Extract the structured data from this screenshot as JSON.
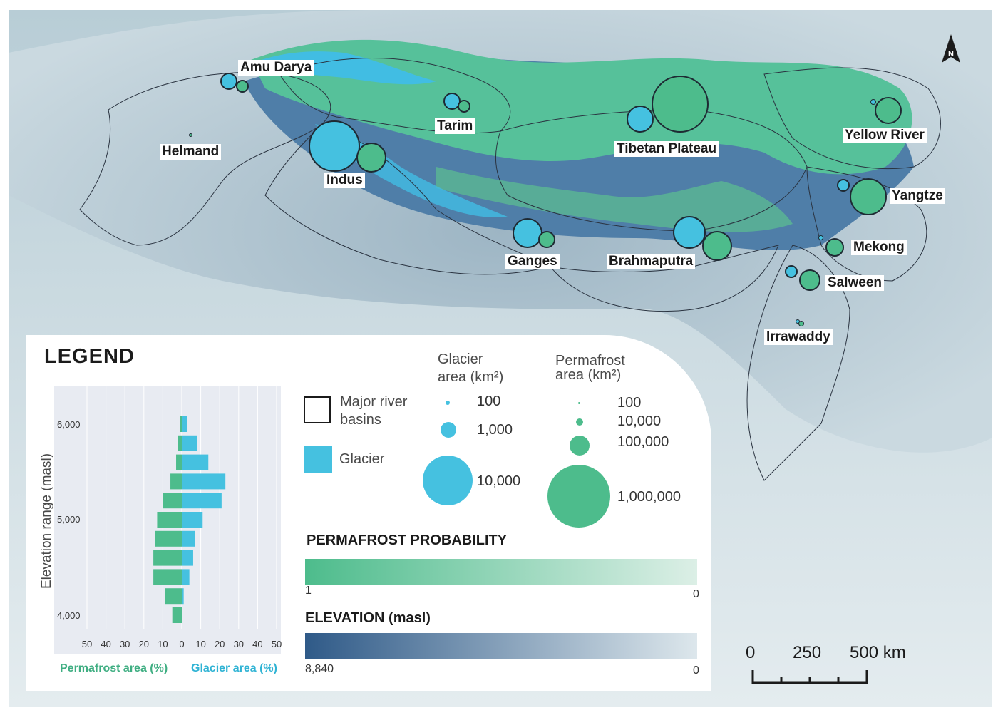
{
  "map_labels": {
    "amu_darya": "Amu Darya",
    "helmand": "Helmand",
    "indus": "Indus",
    "tarim": "Tarim",
    "tibetan_plateau": "Tibetan Plateau",
    "yellow_river": "Yellow River",
    "yangtze": "Yangtze",
    "mekong": "Mekong",
    "salween": "Salween",
    "irrawaddy": "Irrawaddy",
    "ganges": "Ganges",
    "brahmaputra": "Brahmaputra"
  },
  "north_arrow": {
    "letter": "N",
    "icon": "north-arrow-icon"
  },
  "legend": {
    "title": "LEGEND",
    "major_basins_line1": "Major river",
    "major_basins_line2": "basins",
    "glacier_label": "Glacier",
    "glacier_area_title_line1": "Glacier",
    "glacier_area_title_line2": "area (km²)",
    "permafrost_area_title_line1": "Permafrost",
    "permafrost_area_title_line2": "area  (km²)",
    "glacier_sizes": [
      "100",
      "1,000",
      "10,000"
    ],
    "permafrost_sizes": [
      "100",
      "10,000",
      "100,000",
      "1,000,000"
    ],
    "permafrost_probability_title": "PERMAFROST PROBABILITY",
    "permafrost_probability_min": "1",
    "permafrost_probability_max": "0",
    "elevation_title": "ELEVATION (masl)",
    "elevation_min": "8,840",
    "elevation_max": "0"
  },
  "chart_data": {
    "type": "bar",
    "orientation": "horizontal-butterfly",
    "ylabel": "Elevation range (masl)",
    "y_ticks": [
      "6,000",
      "5,000",
      "4,000"
    ],
    "x_ticks": [
      "50",
      "40",
      "30",
      "20",
      "10",
      "0",
      "10",
      "20",
      "30",
      "40",
      "50"
    ],
    "xlim": [
      -50,
      50
    ],
    "left_axis_label": "Permafrost area (%)",
    "right_axis_label": "Glacier area (%)",
    "grid": true,
    "series": [
      {
        "name": "Permafrost area (%)",
        "side": "left",
        "values": [
          1,
          2,
          3,
          6,
          10,
          13,
          14,
          15,
          15,
          9,
          5
        ]
      },
      {
        "name": "Glacier area (%)",
        "side": "right",
        "values": [
          3,
          8,
          14,
          23,
          21,
          11,
          7,
          6,
          4,
          1,
          0
        ]
      }
    ],
    "colors": {
      "permafrost": "#4dbc8c",
      "glacier": "#45c1e0"
    }
  },
  "map_bubbles": [
    {
      "basin": "Amu Darya",
      "glacier_km2": 3000,
      "permafrost_km2": 15000
    },
    {
      "basin": "Helmand",
      "glacier_km2": 0,
      "permafrost_km2": 100
    },
    {
      "basin": "Indus",
      "glacier_km2": 22000,
      "permafrost_km2": 70000
    },
    {
      "basin": "Tarim",
      "glacier_km2": 3000,
      "permafrost_km2": 10000
    },
    {
      "basin": "Tibetan Plateau",
      "glacier_km2": 6000,
      "permafrost_km2": 1000000
    },
    {
      "basin": "Yellow River",
      "glacier_km2": 100,
      "permafrost_km2": 80000
    },
    {
      "basin": "Yangtze",
      "glacier_km2": 1500,
      "permafrost_km2": 200000
    },
    {
      "basin": "Mekong",
      "glacier_km2": 100,
      "permafrost_km2": 30000
    },
    {
      "basin": "Salween",
      "glacier_km2": 1200,
      "permafrost_km2": 50000
    },
    {
      "basin": "Irrawaddy",
      "glacier_km2": 100,
      "permafrost_km2": 1000
    },
    {
      "basin": "Ganges",
      "glacier_km2": 9000,
      "permafrost_km2": 30000
    },
    {
      "basin": "Brahmaputra",
      "glacier_km2": 11000,
      "permafrost_km2": 120000
    }
  ],
  "scale_bar": {
    "ticks": [
      "0",
      "250",
      "500 km"
    ]
  },
  "colors": {
    "glacier": "#45c1e0",
    "permafrost": "#4dbc8c",
    "elevation_dark": "#2f5a88",
    "background_sea": "#dfe9ee"
  }
}
